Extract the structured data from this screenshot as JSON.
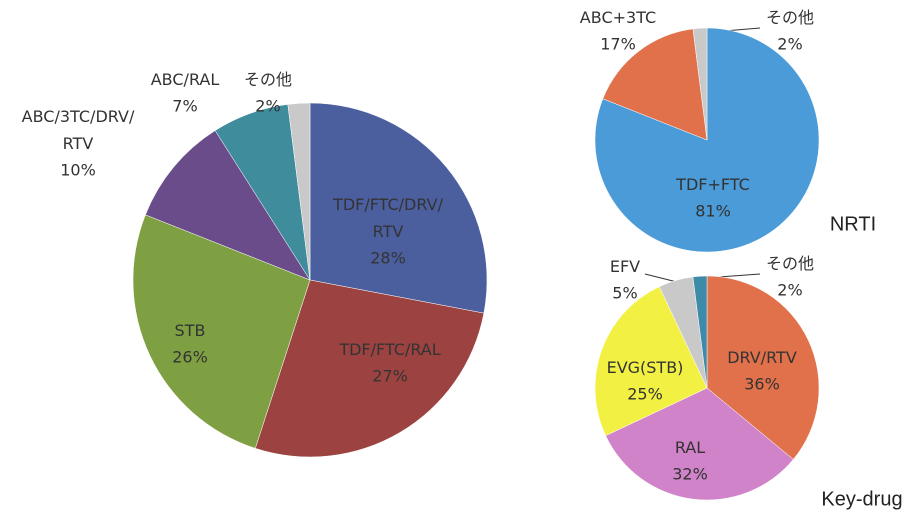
{
  "chart_data": [
    {
      "type": "pie",
      "categories": [
        "TDF/FTC/DRV/RTV",
        "TDF/FTC/RAL",
        "STB",
        "ABC/3TC/DRV/RTV",
        "ABC/RAL",
        "その他"
      ],
      "values": [
        28,
        27,
        26,
        10,
        7,
        2
      ],
      "value_labels": [
        "28%",
        "27%",
        "26%",
        "10%",
        "7%",
        "2%"
      ],
      "colors": [
        "#4b5f9f",
        "#9c4341",
        "#7fa042",
        "#6a4c8a",
        "#3e8c9c",
        "#c9c9c9"
      ]
    },
    {
      "type": "pie",
      "title": "NRTI",
      "categories": [
        "TDF+FTC",
        "ABC+3TC",
        "その他"
      ],
      "values": [
        81,
        17,
        2
      ],
      "value_labels": [
        "81%",
        "17%",
        "2%"
      ],
      "colors": [
        "#4a9bd8",
        "#e0714b",
        "#c9c9c9"
      ]
    },
    {
      "type": "pie",
      "title": "Key-drug",
      "categories": [
        "DRV/RTV",
        "RAL",
        "EVG(STB)",
        "EFV",
        "その他"
      ],
      "values": [
        36,
        32,
        25,
        5,
        2
      ],
      "value_labels": [
        "36%",
        "32%",
        "25%",
        "5%",
        "2%"
      ],
      "colors": [
        "#e0714b",
        "#d083c8",
        "#f2f042",
        "#c9c9c9",
        "#3d8aa9"
      ]
    }
  ]
}
